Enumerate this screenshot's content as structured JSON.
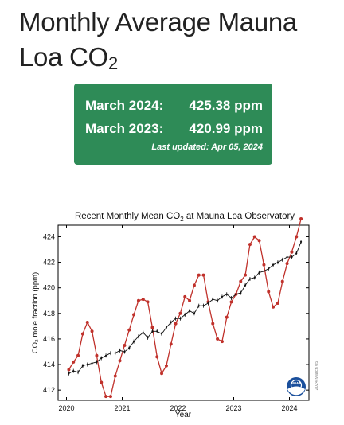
{
  "page": {
    "title": "Monthly Average Mauna Loa CO",
    "title_subscript": "2"
  },
  "stats": {
    "current_label": "March 2024:",
    "current_value": "425.38 ppm",
    "previous_label": "March 2023:",
    "previous_value": "420.99 ppm",
    "last_updated": "Last updated: Apr 05, 2024",
    "card_color": "#2e8b57"
  },
  "logo": {
    "icon": "noaa-logo-icon",
    "text": "NOAA"
  },
  "chart_data": {
    "type": "line",
    "title": "Recent Monthly Mean CO₂ at Mauna Loa Observatory",
    "title_prefix": "Recent Monthly Mean CO",
    "title_sub": "2",
    "title_suffix": " at Mauna Loa Observatory",
    "xlabel": "Year",
    "ylabel": "CO₂ mole fraction (ppm)",
    "xlim": [
      2019.85,
      2024.35
    ],
    "ylim": [
      411.2,
      424.9
    ],
    "xticks": [
      2020,
      2021,
      2022,
      2023,
      2024
    ],
    "yticks": [
      412,
      414,
      416,
      418,
      420,
      422,
      424
    ],
    "grid": false,
    "watermark": "2024 March 05",
    "colors": {
      "monthly": "#c0312b",
      "trend": "#111111"
    },
    "series": [
      {
        "key": "monthly",
        "x": [
          2020.042,
          2020.125,
          2020.208,
          2020.292,
          2020.375,
          2020.458,
          2020.542,
          2020.625,
          2020.708,
          2020.792,
          2020.875,
          2020.958,
          2021.042,
          2021.125,
          2021.208,
          2021.292,
          2021.375,
          2021.458,
          2021.542,
          2021.625,
          2021.708,
          2021.792,
          2021.875,
          2021.958,
          2022.042,
          2022.125,
          2022.208,
          2022.292,
          2022.375,
          2022.458,
          2022.542,
          2022.625,
          2022.708,
          2022.792,
          2022.875,
          2022.958,
          2023.042,
          2023.125,
          2023.208,
          2023.292,
          2023.375,
          2023.458,
          2023.542,
          2023.625,
          2023.708,
          2023.792,
          2023.875,
          2023.958,
          2024.042,
          2024.125,
          2024.208
        ],
        "values": [
          413.6,
          414.2,
          414.7,
          416.4,
          417.3,
          416.6,
          414.7,
          412.6,
          411.5,
          411.5,
          413.1,
          414.3,
          415.5,
          416.7,
          417.9,
          419.0,
          419.1,
          418.9,
          416.9,
          414.6,
          413.3,
          413.9,
          415.6,
          417.2,
          418.0,
          419.3,
          419.0,
          420.2,
          421.0,
          421.0,
          418.9,
          417.2,
          416.0,
          415.8,
          417.7,
          418.9,
          419.5,
          420.5,
          421.0,
          423.4,
          424.0,
          423.7,
          421.8,
          419.7,
          418.5,
          418.8,
          420.5,
          421.9,
          422.8,
          424.0,
          425.4
        ]
      },
      {
        "key": "trend",
        "x": [
          2020.042,
          2020.125,
          2020.208,
          2020.292,
          2020.375,
          2020.458,
          2020.542,
          2020.625,
          2020.708,
          2020.792,
          2020.875,
          2020.958,
          2021.042,
          2021.125,
          2021.208,
          2021.292,
          2021.375,
          2021.458,
          2021.542,
          2021.625,
          2021.708,
          2021.792,
          2021.875,
          2021.958,
          2022.042,
          2022.125,
          2022.208,
          2022.292,
          2022.375,
          2022.458,
          2022.542,
          2022.625,
          2022.708,
          2022.792,
          2022.875,
          2022.958,
          2023.042,
          2023.125,
          2023.208,
          2023.292,
          2023.375,
          2023.458,
          2023.542,
          2023.625,
          2023.708,
          2023.792,
          2023.875,
          2023.958,
          2024.042,
          2024.125,
          2024.208
        ],
        "values": [
          413.3,
          413.5,
          413.4,
          413.9,
          414.0,
          414.1,
          414.2,
          414.5,
          414.7,
          414.9,
          414.9,
          415.1,
          415.0,
          415.3,
          415.8,
          416.2,
          416.5,
          416.1,
          416.6,
          416.6,
          416.4,
          416.9,
          417.3,
          417.6,
          417.6,
          417.9,
          418.2,
          418.0,
          418.6,
          418.6,
          418.8,
          419.1,
          419.0,
          419.3,
          419.5,
          419.2,
          419.5,
          419.6,
          420.2,
          420.7,
          420.8,
          421.2,
          421.3,
          421.5,
          421.8,
          422.0,
          422.2,
          422.4,
          422.4,
          422.7,
          423.6
        ]
      }
    ]
  }
}
